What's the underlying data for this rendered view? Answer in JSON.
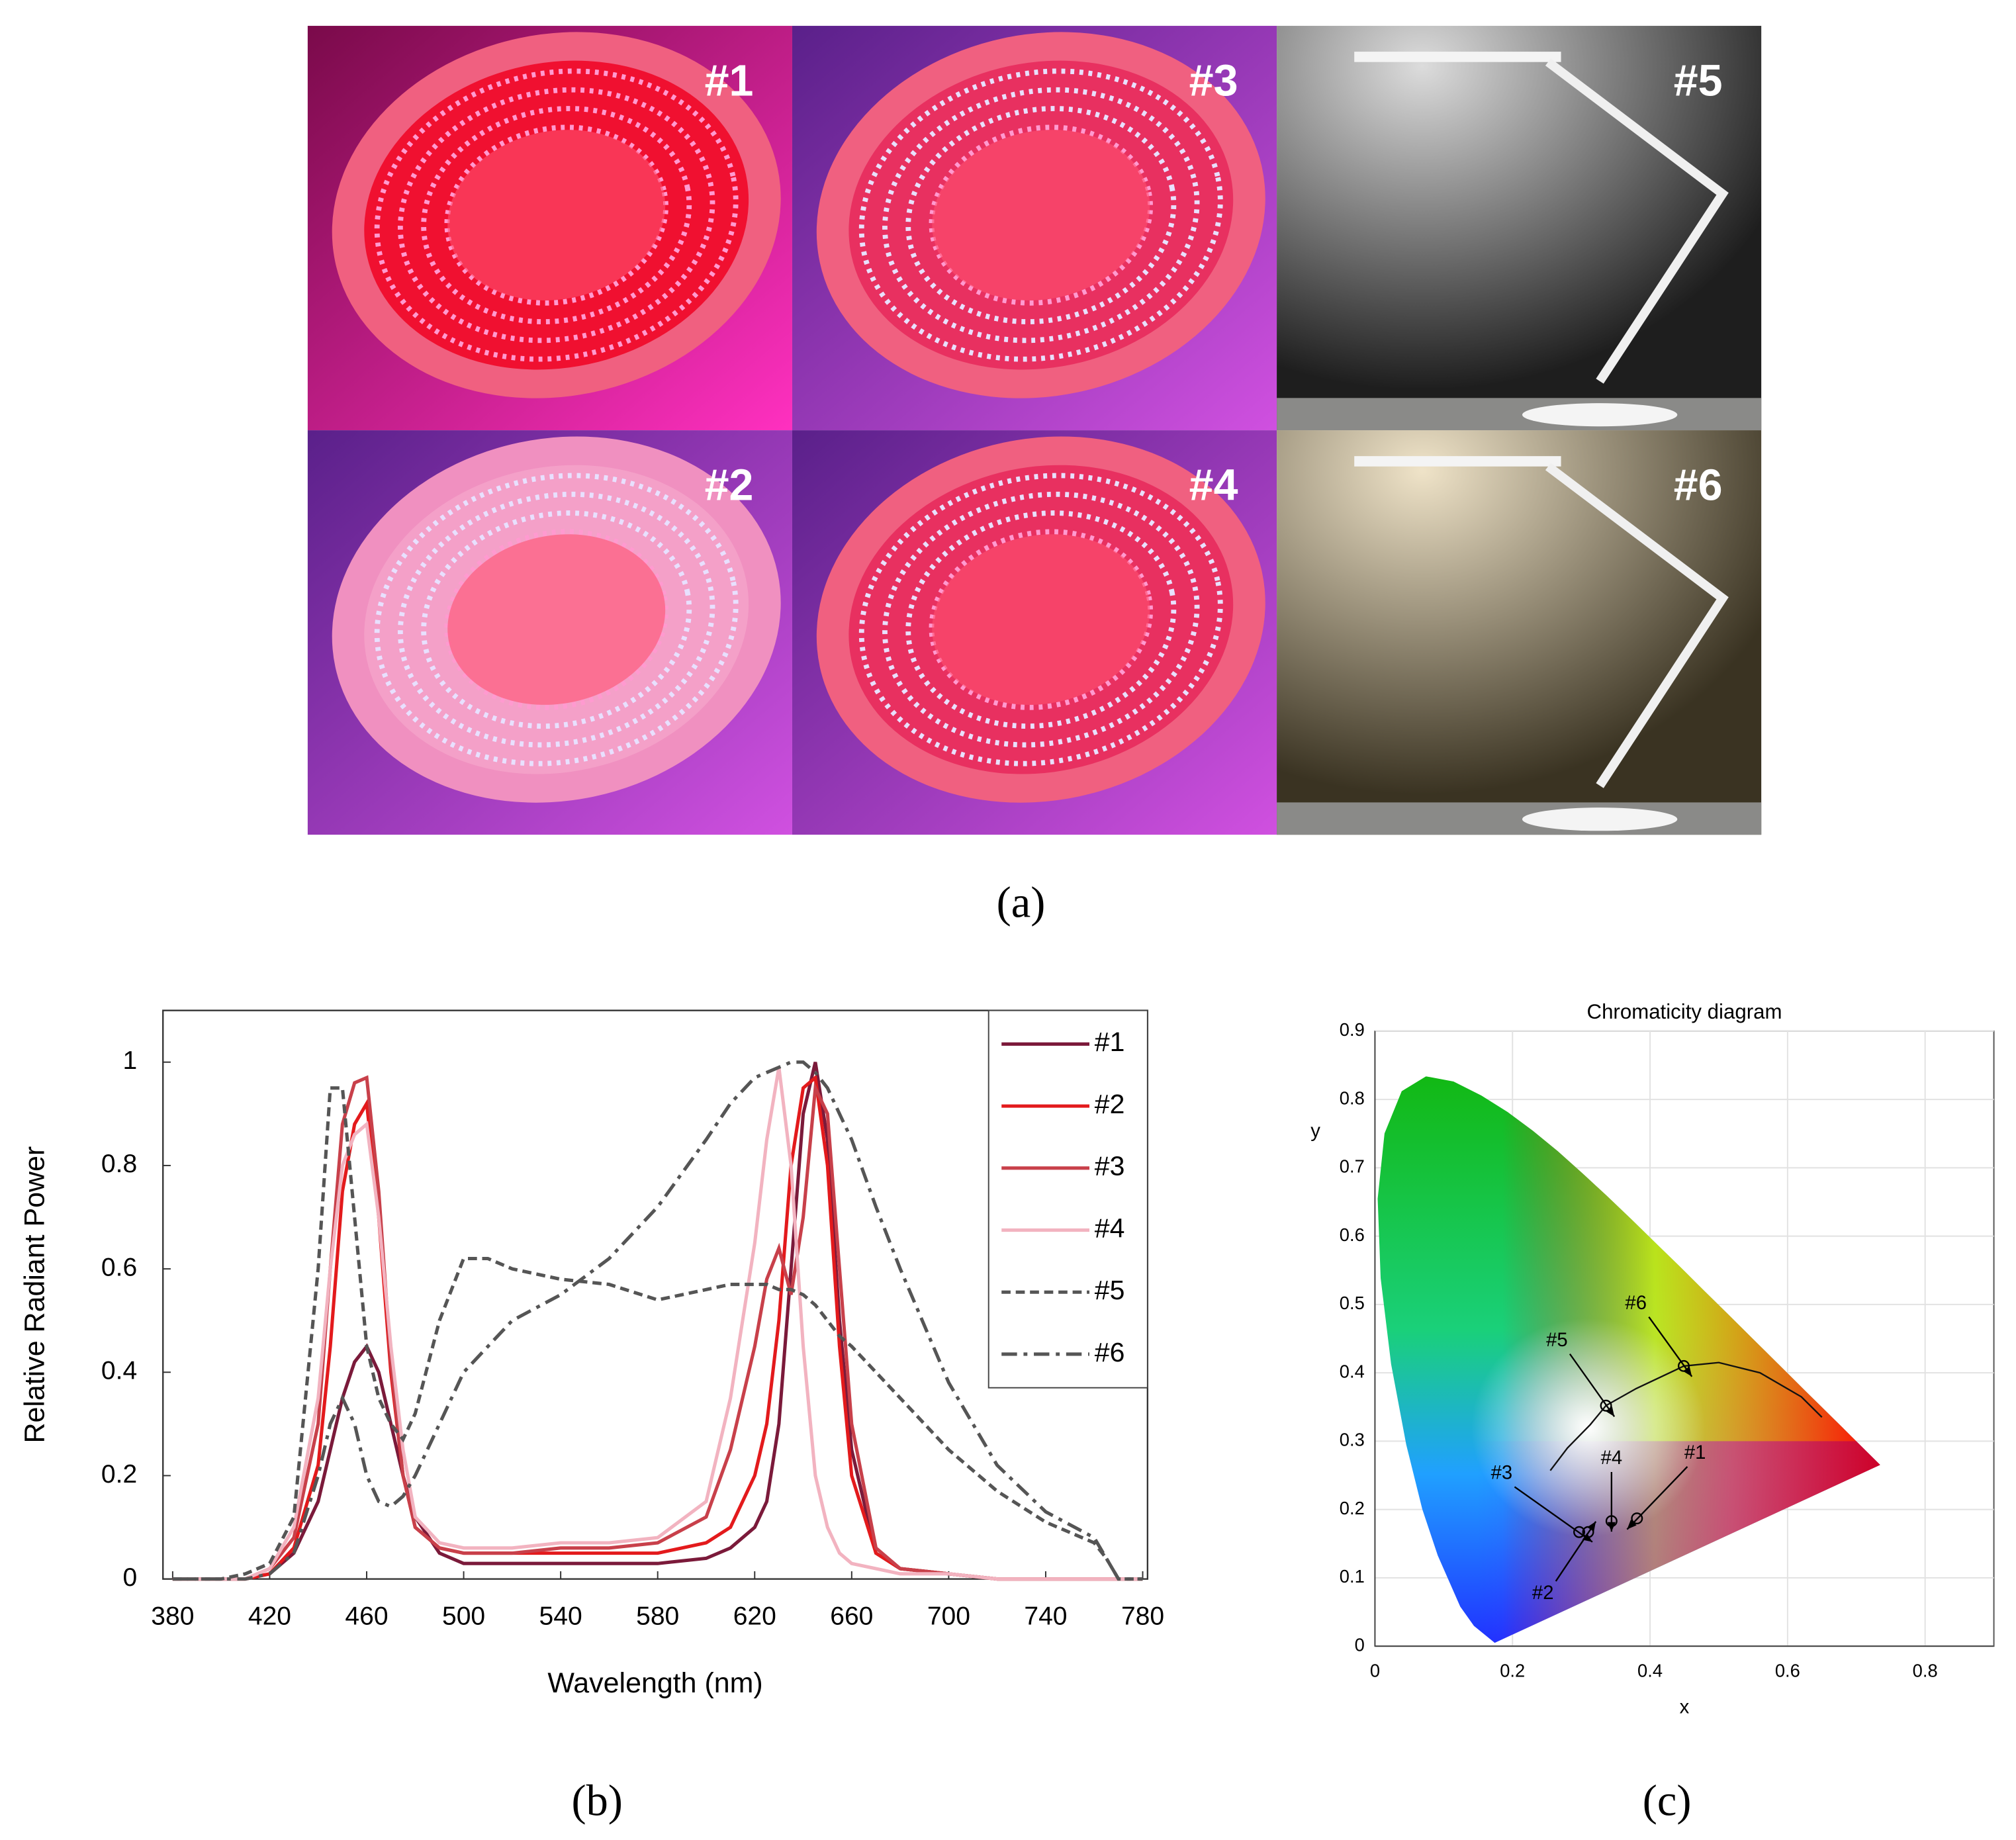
{
  "panel_a": {
    "labels": [
      "#1",
      "#2",
      "#3",
      "#4",
      "#5",
      "#6"
    ],
    "caption": "(a)"
  },
  "chart_data": [
    {
      "type": "line",
      "caption": "(b)",
      "xlabel": "Wavelength (nm)",
      "ylabel": "Relative Radiant Power",
      "xlim": [
        376,
        782
      ],
      "ylim": [
        0,
        1.1
      ],
      "xticks": [
        380,
        420,
        460,
        500,
        540,
        580,
        620,
        660,
        700,
        740,
        780
      ],
      "yticks": [
        0,
        0.2,
        0.4,
        0.6,
        0.8,
        1
      ],
      "legend": "upper right",
      "x": [
        380,
        400,
        410,
        420,
        430,
        440,
        445,
        450,
        455,
        460,
        465,
        470,
        475,
        480,
        490,
        500,
        510,
        520,
        540,
        560,
        580,
        600,
        610,
        620,
        625,
        630,
        635,
        640,
        645,
        650,
        655,
        660,
        670,
        680,
        700,
        720,
        740,
        760,
        765,
        770,
        780
      ],
      "series": [
        {
          "name": "#1",
          "color": "#7b1a3a",
          "line_style": "solid",
          "values": [
            0,
            0,
            0,
            0.01,
            0.05,
            0.15,
            0.25,
            0.35,
            0.42,
            0.45,
            0.4,
            0.3,
            0.2,
            0.12,
            0.05,
            0.03,
            0.03,
            0.03,
            0.03,
            0.03,
            0.03,
            0.04,
            0.06,
            0.1,
            0.15,
            0.3,
            0.6,
            0.9,
            1.0,
            0.85,
            0.5,
            0.25,
            0.05,
            0.02,
            0.01,
            0,
            0,
            0,
            0,
            0,
            0
          ]
        },
        {
          "name": "#2",
          "color": "#e31a1c",
          "line_style": "solid",
          "values": [
            0,
            0,
            0,
            0.01,
            0.06,
            0.22,
            0.45,
            0.75,
            0.88,
            0.92,
            0.7,
            0.4,
            0.2,
            0.1,
            0.06,
            0.05,
            0.05,
            0.05,
            0.05,
            0.05,
            0.05,
            0.07,
            0.1,
            0.2,
            0.3,
            0.5,
            0.8,
            0.95,
            0.97,
            0.8,
            0.45,
            0.2,
            0.05,
            0.02,
            0.01,
            0,
            0,
            0,
            0,
            0,
            0
          ]
        },
        {
          "name": "#3",
          "color": "#c8404a",
          "line_style": "solid",
          "values": [
            0,
            0,
            0,
            0.02,
            0.08,
            0.3,
            0.6,
            0.88,
            0.96,
            0.97,
            0.75,
            0.42,
            0.2,
            0.1,
            0.06,
            0.05,
            0.05,
            0.05,
            0.06,
            0.06,
            0.07,
            0.12,
            0.25,
            0.45,
            0.58,
            0.64,
            0.55,
            0.7,
            0.95,
            0.9,
            0.6,
            0.3,
            0.06,
            0.02,
            0.01,
            0,
            0,
            0,
            0,
            0,
            0
          ]
        },
        {
          "name": "#4",
          "color": "#f2b3c0",
          "line_style": "solid",
          "values": [
            0,
            0,
            0,
            0.02,
            0.1,
            0.35,
            0.6,
            0.8,
            0.86,
            0.88,
            0.7,
            0.45,
            0.25,
            0.12,
            0.07,
            0.06,
            0.06,
            0.06,
            0.07,
            0.07,
            0.08,
            0.15,
            0.35,
            0.65,
            0.85,
            0.99,
            0.8,
            0.45,
            0.2,
            0.1,
            0.05,
            0.03,
            0.02,
            0.01,
            0.01,
            0,
            0,
            0,
            0,
            0,
            0
          ]
        },
        {
          "name": "#5",
          "color": "#555555",
          "line_style": "dashed",
          "values": [
            0,
            0,
            0.01,
            0.03,
            0.12,
            0.6,
            0.95,
            0.95,
            0.7,
            0.45,
            0.35,
            0.3,
            0.27,
            0.32,
            0.5,
            0.62,
            0.62,
            0.6,
            0.58,
            0.57,
            0.54,
            0.56,
            0.57,
            0.57,
            0.57,
            0.56,
            0.56,
            0.55,
            0.53,
            0.5,
            0.47,
            0.45,
            0.4,
            0.35,
            0.25,
            0.17,
            0.11,
            0.07,
            0.04,
            0,
            0
          ]
        },
        {
          "name": "#6",
          "color": "#555555",
          "line_style": "dashdot",
          "values": [
            0,
            0,
            0,
            0.01,
            0.05,
            0.2,
            0.3,
            0.35,
            0.3,
            0.2,
            0.15,
            0.14,
            0.16,
            0.2,
            0.3,
            0.4,
            0.45,
            0.5,
            0.55,
            0.62,
            0.72,
            0.85,
            0.92,
            0.97,
            0.98,
            0.99,
            1.0,
            1.0,
            0.98,
            0.95,
            0.9,
            0.85,
            0.72,
            0.6,
            0.38,
            0.22,
            0.13,
            0.08,
            0.04,
            0,
            0
          ]
        }
      ]
    },
    {
      "type": "scatter",
      "title": "Chromaticity diagram",
      "caption": "(c)",
      "xlabel": "x",
      "ylabel": "y",
      "xlim": [
        0,
        0.9
      ],
      "ylim": [
        0,
        0.9
      ],
      "xticks": [
        0,
        0.2,
        0.4,
        0.6,
        0.8
      ],
      "yticks": [
        0,
        0.1,
        0.2,
        0.3,
        0.4,
        0.5,
        0.6,
        0.7,
        0.8,
        0.9
      ],
      "grid": true,
      "spectral_locus": {
        "x": [
          0.1741,
          0.144,
          0.1241,
          0.0913,
          0.0687,
          0.0454,
          0.0235,
          0.0082,
          0.0039,
          0.0139,
          0.0389,
          0.0743,
          0.1142,
          0.1547,
          0.1929,
          0.2296,
          0.2658,
          0.3016,
          0.3373,
          0.3731,
          0.4087,
          0.4441,
          0.4788,
          0.5125,
          0.5448,
          0.5752,
          0.6029,
          0.627,
          0.6482,
          0.6658,
          0.6801,
          0.6915,
          0.7347
        ],
        "y": [
          0.005,
          0.0297,
          0.0578,
          0.1327,
          0.2007,
          0.295,
          0.4127,
          0.5384,
          0.6548,
          0.7502,
          0.812,
          0.8338,
          0.8262,
          0.8059,
          0.7816,
          0.7543,
          0.7243,
          0.6923,
          0.6589,
          0.6245,
          0.5896,
          0.5547,
          0.5202,
          0.4866,
          0.4544,
          0.4242,
          0.3965,
          0.3725,
          0.3514,
          0.334,
          0.3197,
          0.3083,
          0.2653
        ]
      },
      "planckian_locus": {
        "x": [
          0.255,
          0.28,
          0.313,
          0.336,
          0.38,
          0.437,
          0.449,
          0.5,
          0.56,
          0.62,
          0.65
        ],
        "y": [
          0.257,
          0.29,
          0.324,
          0.352,
          0.377,
          0.404,
          0.41,
          0.415,
          0.4,
          0.365,
          0.335
        ]
      },
      "labels": [
        "#1",
        "#2",
        "#3",
        "#4",
        "#5",
        "#6"
      ],
      "x": [
        0.381,
        0.31,
        0.297,
        0.344,
        0.336,
        0.449
      ],
      "y": [
        0.187,
        0.167,
        0.167,
        0.183,
        0.352,
        0.41
      ]
    }
  ]
}
